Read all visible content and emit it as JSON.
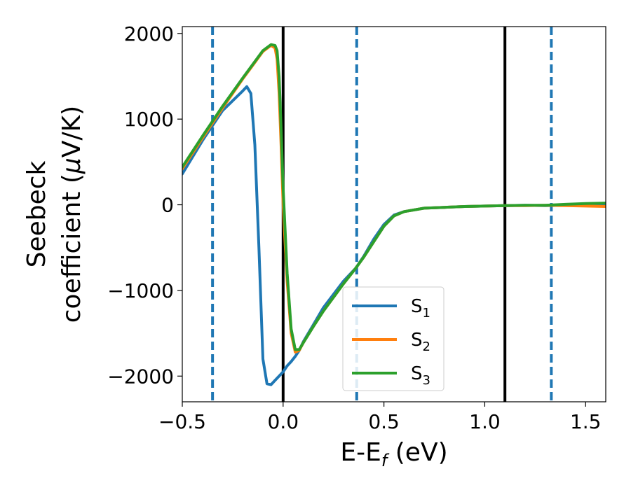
{
  "chart_data": {
    "type": "line",
    "title": "",
    "xlabel": "E-E",
    "xlabel_sub": "f",
    "xlabel_unit": " (eV)",
    "ylabel_line1": "Seebeck",
    "ylabel_line2": "coefficient  (",
    "ylabel_mu": "μ",
    "ylabel_unit": "V/K)",
    "xlim": [
      -0.5,
      1.6
    ],
    "ylim": [
      -2300,
      2080
    ],
    "xticks": [
      -0.5,
      0.0,
      0.5,
      1.0,
      1.5
    ],
    "xtick_labels": [
      "−0.5",
      "0.0",
      "0.5",
      "1.0",
      "1.5"
    ],
    "yticks": [
      -2000,
      -1000,
      0,
      1000,
      2000
    ],
    "ytick_labels": [
      "−2000",
      "−1000",
      "0",
      "1000",
      "2000"
    ],
    "grid": false,
    "legend_position": "lower-center",
    "vertical_lines": [
      {
        "x": 0.0,
        "style": "solid",
        "color": "#000000"
      },
      {
        "x": 1.1,
        "style": "solid",
        "color": "#000000"
      },
      {
        "x": -0.35,
        "style": "dashed",
        "color": "#1f77b4"
      },
      {
        "x": 0.365,
        "style": "dashed",
        "color": "#1f77b4"
      },
      {
        "x": 1.33,
        "style": "dashed",
        "color": "#1f77b4"
      }
    ],
    "series": [
      {
        "name": "S",
        "name_sub": "1",
        "color": "#1f77b4",
        "x": [
          -0.5,
          -0.4,
          -0.3,
          -0.2,
          -0.18,
          -0.16,
          -0.14,
          -0.12,
          -0.1,
          -0.08,
          -0.06,
          -0.04,
          -0.02,
          0.0,
          0.02,
          0.04,
          0.06,
          0.08,
          0.1,
          0.15,
          0.2,
          0.3,
          0.36,
          0.4,
          0.45,
          0.5,
          0.55,
          0.6,
          0.7,
          0.8,
          0.9,
          1.0,
          1.1,
          1.2,
          1.3,
          1.4,
          1.5,
          1.6
        ],
        "y": [
          360,
          750,
          1100,
          1330,
          1380,
          1300,
          700,
          -500,
          -1800,
          -2090,
          -2100,
          -2050,
          -2000,
          -1950,
          -1880,
          -1830,
          -1770,
          -1700,
          -1600,
          -1400,
          -1200,
          -890,
          -740,
          -600,
          -400,
          -230,
          -120,
          -80,
          -40,
          -30,
          -20,
          -15,
          -10,
          -5,
          -10,
          -5,
          5,
          10
        ]
      },
      {
        "name": "S",
        "name_sub": "2",
        "color": "#ff7f0e",
        "x": [
          -0.5,
          -0.4,
          -0.3,
          -0.2,
          -0.15,
          -0.1,
          -0.06,
          -0.04,
          -0.03,
          -0.02,
          -0.01,
          0.0,
          0.02,
          0.04,
          0.06,
          0.08,
          0.1,
          0.15,
          0.2,
          0.3,
          0.36,
          0.4,
          0.45,
          0.5,
          0.55,
          0.6,
          0.7,
          0.8,
          0.9,
          1.0,
          1.1,
          1.2,
          1.3,
          1.4,
          1.5,
          1.6
        ],
        "y": [
          420,
          780,
          1130,
          1470,
          1630,
          1790,
          1860,
          1830,
          1700,
          1300,
          700,
          0,
          -900,
          -1500,
          -1720,
          -1700,
          -1610,
          -1420,
          -1240,
          -920,
          -740,
          -610,
          -430,
          -250,
          -130,
          -80,
          -40,
          -30,
          -20,
          -15,
          -10,
          -10,
          -5,
          -10,
          -15,
          -20
        ]
      },
      {
        "name": "S",
        "name_sub": "3",
        "color": "#2ca02c",
        "x": [
          -0.5,
          -0.4,
          -0.3,
          -0.2,
          -0.15,
          -0.1,
          -0.06,
          -0.04,
          -0.03,
          -0.02,
          -0.01,
          0.0,
          0.02,
          0.04,
          0.06,
          0.08,
          0.1,
          0.15,
          0.2,
          0.3,
          0.36,
          0.4,
          0.45,
          0.5,
          0.55,
          0.6,
          0.7,
          0.8,
          0.9,
          1.0,
          1.1,
          1.2,
          1.3,
          1.4,
          1.5,
          1.6
        ],
        "y": [
          440,
          800,
          1150,
          1480,
          1640,
          1800,
          1870,
          1860,
          1800,
          1500,
          900,
          200,
          -800,
          -1450,
          -1690,
          -1690,
          -1610,
          -1420,
          -1240,
          -920,
          -740,
          -610,
          -430,
          -250,
          -130,
          -80,
          -40,
          -30,
          -20,
          -15,
          -10,
          -5,
          -5,
          5,
          15,
          20
        ]
      }
    ]
  }
}
